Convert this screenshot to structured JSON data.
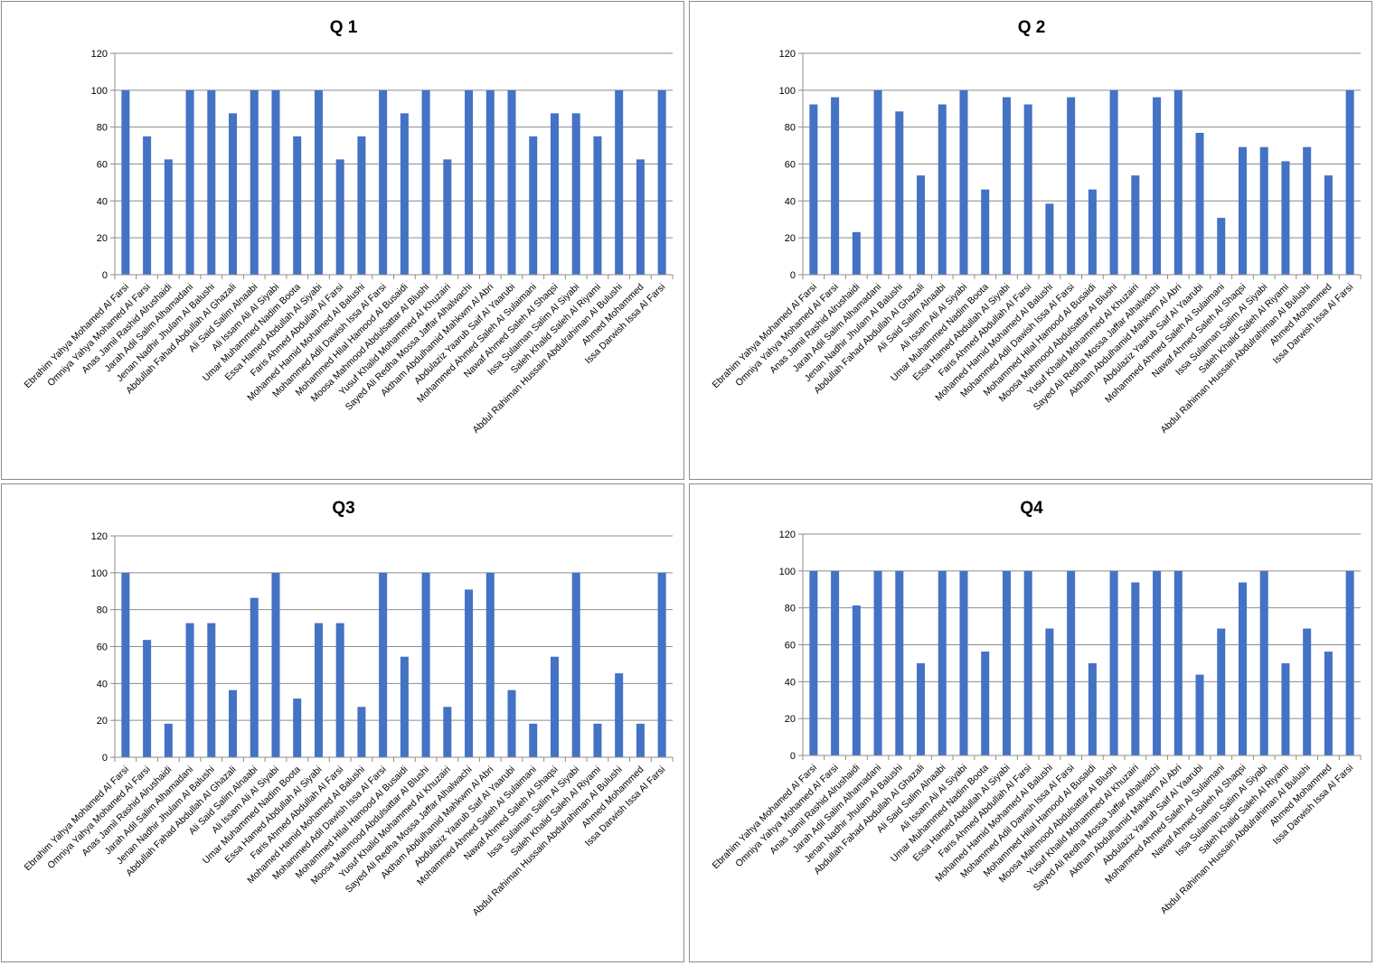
{
  "colors": {
    "bar": "#4472C4",
    "grid": "#8c8c8c",
    "axis": "#8c8c8c",
    "border": "#8c8c8c"
  },
  "charts": [
    {
      "title": "Q 1"
    },
    {
      "title": "Q 2"
    },
    {
      "title": "Q3"
    },
    {
      "title": "Q4"
    }
  ],
  "chart_data": [
    {
      "type": "bar",
      "title": "Q 1",
      "ylim": [
        0,
        120
      ],
      "yticks": [
        0,
        20,
        40,
        60,
        80,
        100,
        120
      ],
      "grid": true,
      "categories": [
        "Ebrahim Yahya Mohamed Al Farsi",
        "Omniya Yahya Mohamed Al Farsi",
        "Anas Jamil Rashid Alrushaidi",
        "Jarah Adil Salim Alhamadani",
        "Jenan Nadhir Jhulam Al Balushi",
        "Abdullah Fahad Abdullah Al Ghazali",
        "Ali Said Salim Alnaabi",
        "Ali Issam Ali Al Siyabi",
        "Umar Muhammed Nadim Boota",
        "Essa Hamed Abdullah Al Siyabi",
        "Faris Ahmed Abdullah Al Farsi",
        "Mohamed Hamid Mohamed Al Balushi",
        "Mohammed Adil Dawish Issa Al Farsi",
        "Mohammed Hilal Hamood Al Busaidi",
        "Moosa Mahmood Abdulsattar Al Blushi",
        "Yusuf Khalid Mohammed Al Khuzairi",
        "Sayed Ali Redha Mossa Jaffar Alhalwachi",
        "Aktham Abdulhamid Mahkwm Al Abri",
        "Abdulaziz Yaarub Saif Al Yaarubi",
        "Mohammed Ahmed Saleh Al Sulaimani",
        "Nawaf Ahmed Saleh Al Shaqsi",
        "Issa Sulaiman Salim Al Siyabi",
        "Saleh Khalid Saleh Al Riyami",
        "Abdul Rahiman  Hussain Abdulrahiman Al Bulushi",
        "Ahmed Mohammed",
        "Issa Darwish Issa Al Farsi"
      ],
      "values": [
        100,
        75,
        62.5,
        100,
        100,
        87.5,
        100,
        100,
        75,
        100,
        62.5,
        75,
        100,
        87.5,
        100,
        62.5,
        100,
        100,
        100,
        75,
        87.5,
        87.5,
        75,
        100,
        62.5,
        100
      ]
    },
    {
      "type": "bar",
      "title": "Q 2",
      "ylim": [
        0,
        120
      ],
      "yticks": [
        0,
        20,
        40,
        60,
        80,
        100,
        120
      ],
      "grid": true,
      "categories": [
        "Ebrahim Yahya Mohamed Al Farsi",
        "Omniya Yahya Mohamed Al Farsi",
        "Anas Jamil Rashid Alrushaidi",
        "Jarah Adil Salim Alhamadani",
        "Jenan Nadhir Jhulam Al Balushi",
        "Abdullah Fahad Abdullah Al Ghazali",
        "Ali Said Salim Alnaabi",
        "Ali Issam Ali Al Siyabi",
        "Umar Muhammed Nadim Boota",
        "Essa Hamed Abdullah Al Siyabi",
        "Faris Ahmed Abdullah Al Farsi",
        "Mohamed Hamid Mohamed Al Balushi",
        "Mohammed Adil Dawish Issa Al Farsi",
        "Mohammed Hilal Hamood Al Busaidi",
        "Moosa Mahmood Abdulsattar Al Blushi",
        "Yusuf Khalid Mohammed Al Khuzairi",
        "Sayed Ali Redha Mossa Jaffar Alhalwachi",
        "Aktham Abdulhamid Mahkwm Al Abri",
        "Abdulaziz Yaarub Saif Al Yaarubi",
        "Mohammed Ahmed Saleh Al Sulaimani",
        "Nawaf Ahmed Saleh Al Shaqsi",
        "Issa Sulaiman Salim Al Siyabi",
        "Saleh Khalid Saleh Al Riyami",
        "Abdul Rahiman  Hussain Abdulrahiman Al Bulushi",
        "Ahmed Mohammed",
        "Issa Darwish Issa Al Farsi"
      ],
      "values": [
        92.3,
        96.2,
        23.1,
        100,
        88.5,
        53.8,
        92.3,
        100,
        46.2,
        96.2,
        92.3,
        38.5,
        96.2,
        46.2,
        100,
        53.8,
        96.2,
        100,
        76.9,
        30.8,
        69.2,
        69.2,
        61.5,
        69.2,
        53.8,
        100
      ]
    },
    {
      "type": "bar",
      "title": "Q3",
      "ylim": [
        0,
        120
      ],
      "yticks": [
        0,
        20,
        40,
        60,
        80,
        100,
        120
      ],
      "grid": true,
      "categories": [
        "Ebrahim Yahya Mohamed Al Farsi",
        "Omniya Yahya Mohamed Al Farsi",
        "Anas Jamil Rashid Alrushaidi",
        "Jarah Adil Salim Alhamadani",
        "Jenan Nadhir Jhulam Al Balushi",
        "Abdullah Fahad Abdullah Al Ghazali",
        "Ali Said Salim Alnaabi",
        "Ali Issam Ali Al Siyabi",
        "Umar Muhammed Nadim Boota",
        "Essa Hamed Abdullah Al Siyabi",
        "Faris Ahmed Abdullah Al Farsi",
        "Mohamed Hamid Mohamed Al Balushi",
        "Mohammed Adil Dawish Issa Al Farsi",
        "Mohammed Hilal Hamood Al Busaidi",
        "Moosa Mahmood Abdulsattar Al Blushi",
        "Yusuf Khalid Mohammed Al Khuzairi",
        "Sayed Ali Redha Mossa Jaffar Alhalwachi",
        "Aktham Abdulhamid Mahkwm Al Abri",
        "Abdulaziz Yaarub Saif Al Yaarubi",
        "Mohammed Ahmed Saleh Al Sulaimani",
        "Nawaf Ahmed Saleh Al Shaqsi",
        "Issa Sulaiman Salim Al Siyabi",
        "Saleh Khalid Saleh Al Riyami",
        "Abdul Rahiman  Hussain Abdulrahiman Al Bulushi",
        "Ahmed Mohammed",
        "Issa Darwish Issa Al Farsi"
      ],
      "values": [
        100,
        63.6,
        18.2,
        72.7,
        72.7,
        36.4,
        86.4,
        100,
        31.8,
        72.7,
        72.7,
        27.3,
        100,
        54.5,
        100,
        27.3,
        90.9,
        100,
        36.4,
        18.2,
        54.5,
        100,
        18.2,
        45.5,
        18.2,
        100
      ]
    },
    {
      "type": "bar",
      "title": "Q4",
      "ylim": [
        0,
        120
      ],
      "yticks": [
        0,
        20,
        40,
        60,
        80,
        100,
        120
      ],
      "grid": true,
      "categories": [
        "Ebrahim Yahya Mohamed Al Farsi",
        "Omniya Yahya Mohamed Al Farsi",
        "Anas Jamil Rashid Alrushaidi",
        "Jarah Adil Salim Alhamadani",
        "Jenan Nadhir Jhulam Al Balushi",
        "Abdullah Fahad Abdullah Al Ghazali",
        "Ali Said Salim Alnaabi",
        "Ali Issam Ali Al Siyabi",
        "Umar Muhammed Nadim Boota",
        "Essa Hamed Abdullah Al Siyabi",
        "Faris Ahmed Abdullah Al Farsi",
        "Mohamed Hamid Mohamed Al Balushi",
        "Mohammed Adil Dawish Issa Al Farsi",
        "Mohammed Hilal Hamood Al Busaidi",
        "Moosa Mahmood Abdulsattar Al Blushi",
        "Yusuf Khalid Mohammed Al Khuzairi",
        "Sayed Ali Redha Mossa Jaffar Alhalwachi",
        "Aktham Abdulhamid Mahkwm Al Abri",
        "Abdulaziz Yaarub Saif Al Yaarubi",
        "Mohammed Ahmed Saleh Al Sulaimani",
        "Nawaf Ahmed Saleh Al Shaqsi",
        "Issa Sulaiman Salim Al Siyabi",
        "Saleh Khalid Saleh Al Riyami",
        "Abdul Rahiman  Hussain Abdulrahiman Al Bulushi",
        "Ahmed Mohammed",
        "Issa Darwish Issa Al Farsi"
      ],
      "values": [
        100,
        100,
        81.3,
        100,
        100,
        50,
        100,
        100,
        56.3,
        100,
        100,
        68.8,
        100,
        50,
        100,
        93.8,
        100,
        100,
        43.8,
        68.8,
        93.8,
        100,
        50,
        68.8,
        56.3,
        100
      ]
    }
  ]
}
